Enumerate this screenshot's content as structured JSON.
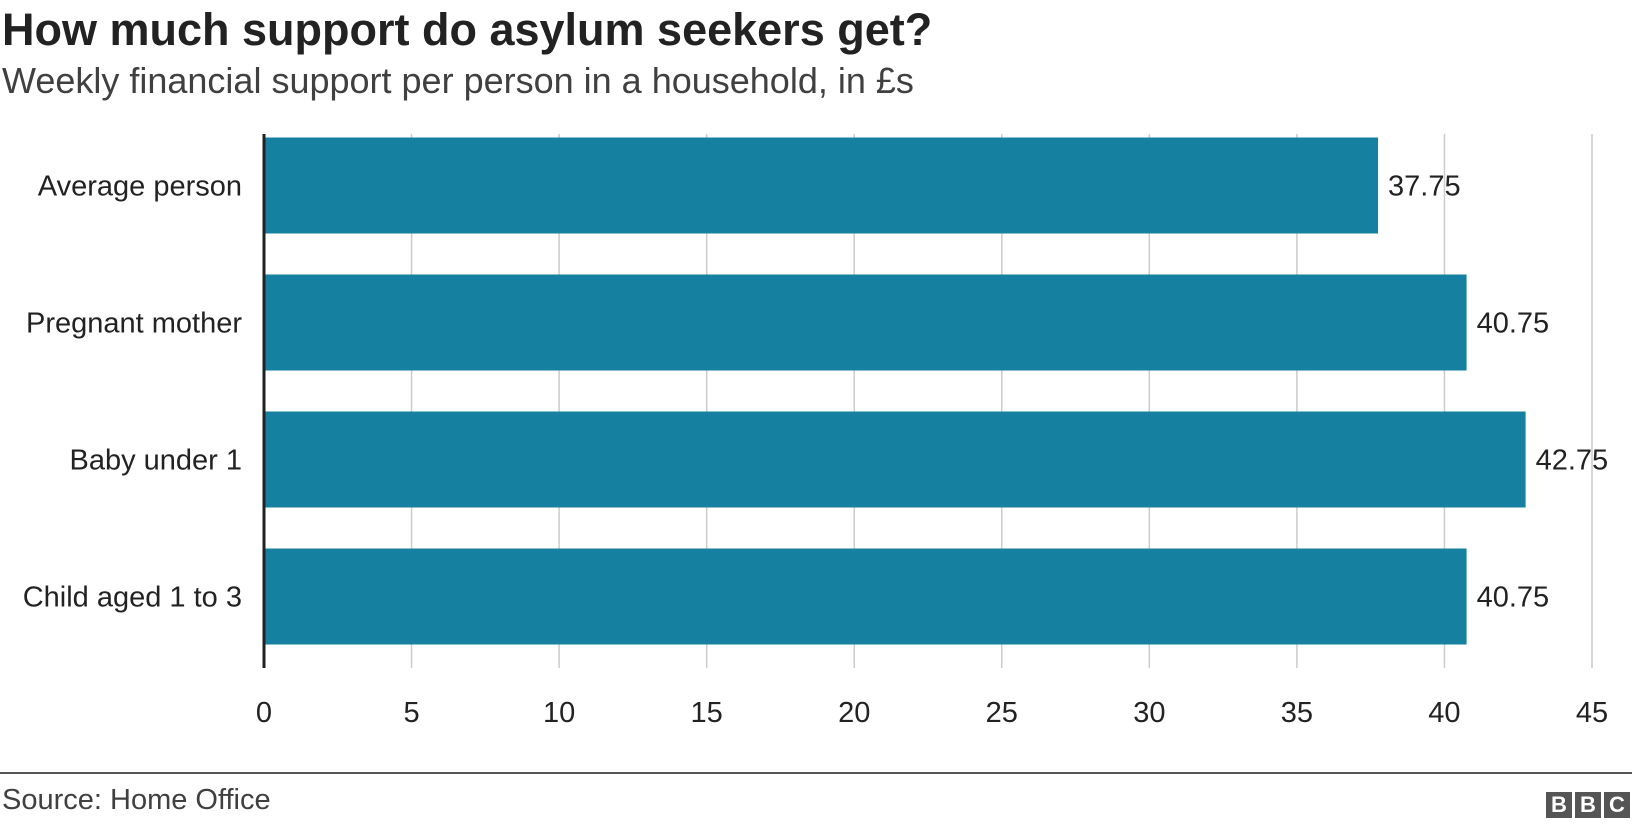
{
  "chart_data": {
    "type": "bar",
    "orientation": "horizontal",
    "title": "How much support do asylum seekers get?",
    "subtitle": "Weekly financial support per person in a household, in £s",
    "categories": [
      "Average person",
      "Pregnant mother",
      "Baby under 1",
      "Child aged 1 to 3"
    ],
    "values": [
      37.75,
      40.75,
      42.75,
      40.75
    ],
    "value_labels": [
      "37.75",
      "40.75",
      "42.75",
      "40.75"
    ],
    "xlim": [
      0,
      45
    ],
    "xticks": [
      0,
      5,
      10,
      15,
      20,
      25,
      30,
      35,
      40,
      45
    ],
    "grid": true,
    "bar_color": "#1580a0"
  },
  "footer": {
    "source": "Source: Home Office",
    "logo": [
      "B",
      "B",
      "C"
    ]
  }
}
